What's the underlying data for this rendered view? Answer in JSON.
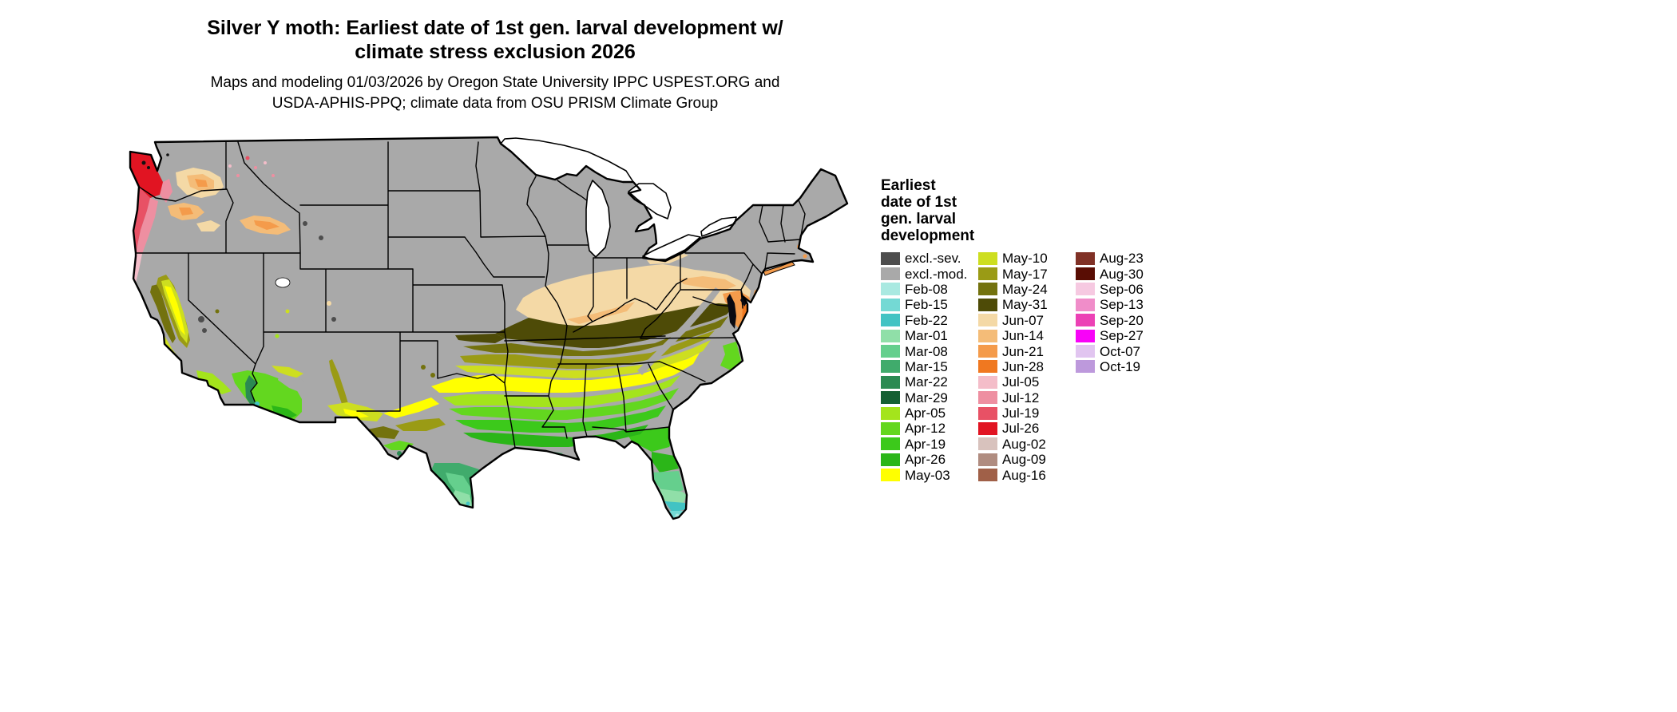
{
  "title": {
    "line1": "Silver Y moth: Earliest date of 1st gen. larval development w/",
    "line2": "climate stress exclusion 2026"
  },
  "subtitle": {
    "line1": "Maps and modeling 01/03/2026 by Oregon State University IPPC USPEST.ORG and",
    "line2": "USDA-APHIS-PPQ; climate data from OSU PRISM Climate Group"
  },
  "legend": {
    "title_lines": [
      "Earliest",
      "date of 1st",
      "gen. larval",
      "development"
    ],
    "columns": [
      [
        {
          "label": "excl.-sev.",
          "key": "exclSev"
        },
        {
          "label": "excl.-mod.",
          "key": "exclMod"
        },
        {
          "label": "Feb-08",
          "key": "feb08"
        },
        {
          "label": "Feb-15",
          "key": "feb15"
        },
        {
          "label": "Feb-22",
          "key": "feb22"
        },
        {
          "label": "Mar-01",
          "key": "mar01"
        },
        {
          "label": "Mar-08",
          "key": "mar08"
        },
        {
          "label": "Mar-15",
          "key": "mar15"
        },
        {
          "label": "Mar-22",
          "key": "mar22"
        },
        {
          "label": "Mar-29",
          "key": "mar29"
        },
        {
          "label": "Apr-05",
          "key": "apr05"
        },
        {
          "label": "Apr-12",
          "key": "apr12"
        },
        {
          "label": "Apr-19",
          "key": "apr19"
        },
        {
          "label": "Apr-26",
          "key": "apr26"
        },
        {
          "label": "May-03",
          "key": "may03"
        }
      ],
      [
        {
          "label": "May-10",
          "key": "may10"
        },
        {
          "label": "May-17",
          "key": "may17"
        },
        {
          "label": "May-24",
          "key": "may24"
        },
        {
          "label": "May-31",
          "key": "may31"
        },
        {
          "label": "Jun-07",
          "key": "jun07"
        },
        {
          "label": "Jun-14",
          "key": "jun14"
        },
        {
          "label": "Jun-21",
          "key": "jun21"
        },
        {
          "label": "Jun-28",
          "key": "jun28"
        },
        {
          "label": "Jul-05",
          "key": "jul05"
        },
        {
          "label": "Jul-12",
          "key": "jul12"
        },
        {
          "label": "Jul-19",
          "key": "jul19"
        },
        {
          "label": "Jul-26",
          "key": "jul26"
        },
        {
          "label": "Aug-02",
          "key": "aug02"
        },
        {
          "label": "Aug-09",
          "key": "aug09"
        },
        {
          "label": "Aug-16",
          "key": "aug16"
        }
      ],
      [
        {
          "label": "Aug-23",
          "key": "aug23"
        },
        {
          "label": "Aug-30",
          "key": "aug30"
        },
        {
          "label": "Sep-06",
          "key": "sep06"
        },
        {
          "label": "Sep-13",
          "key": "sep13"
        },
        {
          "label": "Sep-20",
          "key": "sep20"
        },
        {
          "label": "Sep-27",
          "key": "sep27"
        },
        {
          "label": "Oct-07",
          "key": "oct07"
        },
        {
          "label": "Oct-19",
          "key": "oct19"
        }
      ]
    ]
  },
  "colors": {
    "exclSev": "#4d4d4d",
    "exclMod": "#a9a9a9",
    "feb08": "#a9e9e1",
    "feb15": "#74d9d4",
    "feb22": "#42c3c3",
    "mar01": "#90dfa8",
    "mar08": "#65cf8d",
    "mar15": "#40ab6c",
    "mar22": "#2b8a52",
    "mar29": "#156033",
    "apr05": "#a4e41c",
    "apr12": "#63d71f",
    "apr19": "#3cc91b",
    "apr26": "#2bb618",
    "may03": "#ffff00",
    "may10": "#cdde20",
    "may17": "#9a9b15",
    "may24": "#73720e",
    "may31": "#4e4b07",
    "jun07": "#f4d9a6",
    "jun14": "#f4bc78",
    "jun21": "#f49b4b",
    "jun28": "#f07820",
    "jul05": "#f4bdc9",
    "jul12": "#ee8fa1",
    "jul19": "#e85165",
    "jul26": "#e11422",
    "aug02": "#d8c2bd",
    "aug09": "#b08c80",
    "aug16": "#a06048",
    "aug23": "#803126",
    "aug30": "#590d04",
    "sep06": "#f6c9e1",
    "sep13": "#f08dc9",
    "sep20": "#ec41b5",
    "sep27": "#f803f8",
    "oct07": "#e1c5f0",
    "oct19": "#bd99dc",
    "water": "#ffffff",
    "bay": "#0a0a12",
    "ink": "#000000"
  }
}
